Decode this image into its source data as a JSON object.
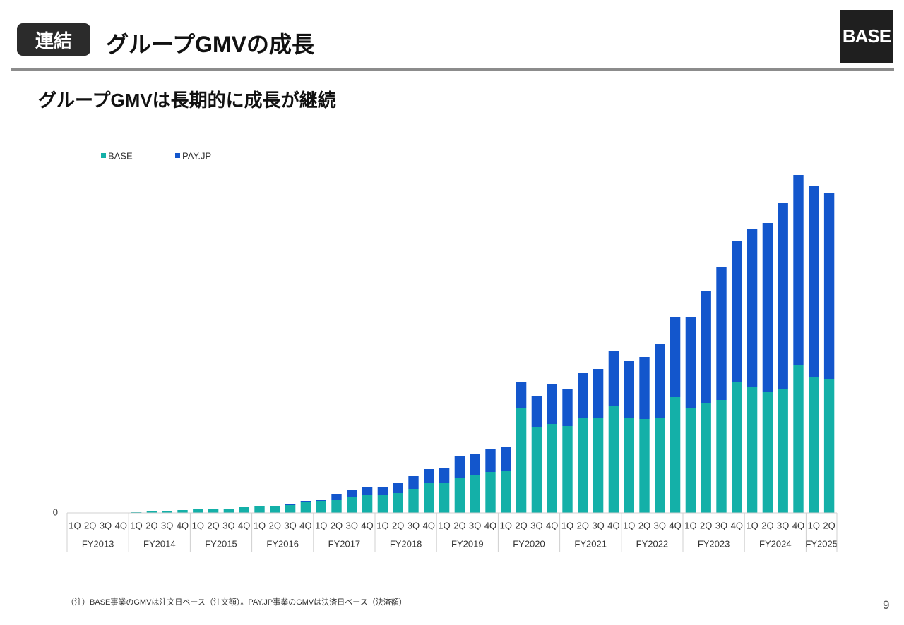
{
  "header": {
    "badge": "連結",
    "title": "グループGMVの成長",
    "logo": "BASE"
  },
  "subtitle": "グループGMVは長期的に成長が継続",
  "chart_data": {
    "type": "stacked-bar",
    "categories": [
      "1Q",
      "2Q",
      "3Q",
      "4Q",
      "1Q",
      "2Q",
      "3Q",
      "4Q",
      "1Q",
      "2Q",
      "3Q",
      "4Q",
      "1Q",
      "2Q",
      "3Q",
      "4Q",
      "1Q",
      "2Q",
      "3Q",
      "4Q",
      "1Q",
      "2Q",
      "3Q",
      "4Q",
      "1Q",
      "2Q",
      "3Q",
      "4Q",
      "1Q",
      "2Q",
      "3Q",
      "4Q",
      "1Q",
      "2Q",
      "3Q",
      "4Q",
      "1Q",
      "2Q",
      "3Q",
      "4Q",
      "1Q",
      "2Q",
      "3Q",
      "4Q",
      "1Q",
      "2Q",
      "3Q",
      "4Q",
      "1Q",
      "2Q"
    ],
    "periods": [
      "FY2013",
      null,
      null,
      null,
      "FY2014",
      null,
      null,
      null,
      "FY2015",
      null,
      null,
      null,
      "FY2016",
      null,
      null,
      null,
      "FY2017",
      null,
      null,
      null,
      "FY2018",
      null,
      null,
      null,
      "FY2019",
      null,
      null,
      null,
      "FY2020",
      null,
      null,
      null,
      "FY2021",
      null,
      null,
      null,
      "FY2022",
      null,
      null,
      null,
      "FY2023",
      null,
      null,
      null,
      "FY2024",
      null,
      null,
      null,
      "FY2025",
      null
    ],
    "series": [
      {
        "name": "BASE",
        "color": "#14b0a8",
        "values": [
          0.5,
          0.5,
          0.5,
          0.5,
          1,
          2,
          3,
          4,
          5,
          6,
          6,
          8,
          9,
          10,
          11,
          16,
          17,
          18,
          22,
          25,
          25,
          28,
          34,
          42,
          42,
          50,
          53,
          58,
          59,
          149,
          121,
          126,
          123,
          134,
          134,
          151,
          134,
          133,
          135,
          164,
          149,
          156,
          160,
          185,
          178,
          171,
          176,
          209,
          193,
          190
        ]
      },
      {
        "name": "PAY.JP",
        "color": "#1356cc",
        "values": [
          0,
          0,
          0,
          0,
          0,
          0,
          0,
          0,
          0,
          0,
          0,
          0,
          0,
          0,
          1,
          1,
          1,
          9,
          10,
          12,
          12,
          15,
          18,
          20,
          22,
          30,
          31,
          33,
          35,
          37,
          45,
          56,
          52,
          64,
          70,
          78,
          81,
          88,
          105,
          114,
          128,
          158,
          188,
          200,
          224,
          240,
          263,
          270,
          270,
          263
        ]
      }
    ],
    "ylim": [
      0,
      490
    ],
    "yticks": [
      0
    ]
  },
  "footnote": "（注）BASE事業のGMVは注文日ベース（注文額）。PAY.JP事業のGMVは決済日ベース（決済額）",
  "page_number": "9"
}
